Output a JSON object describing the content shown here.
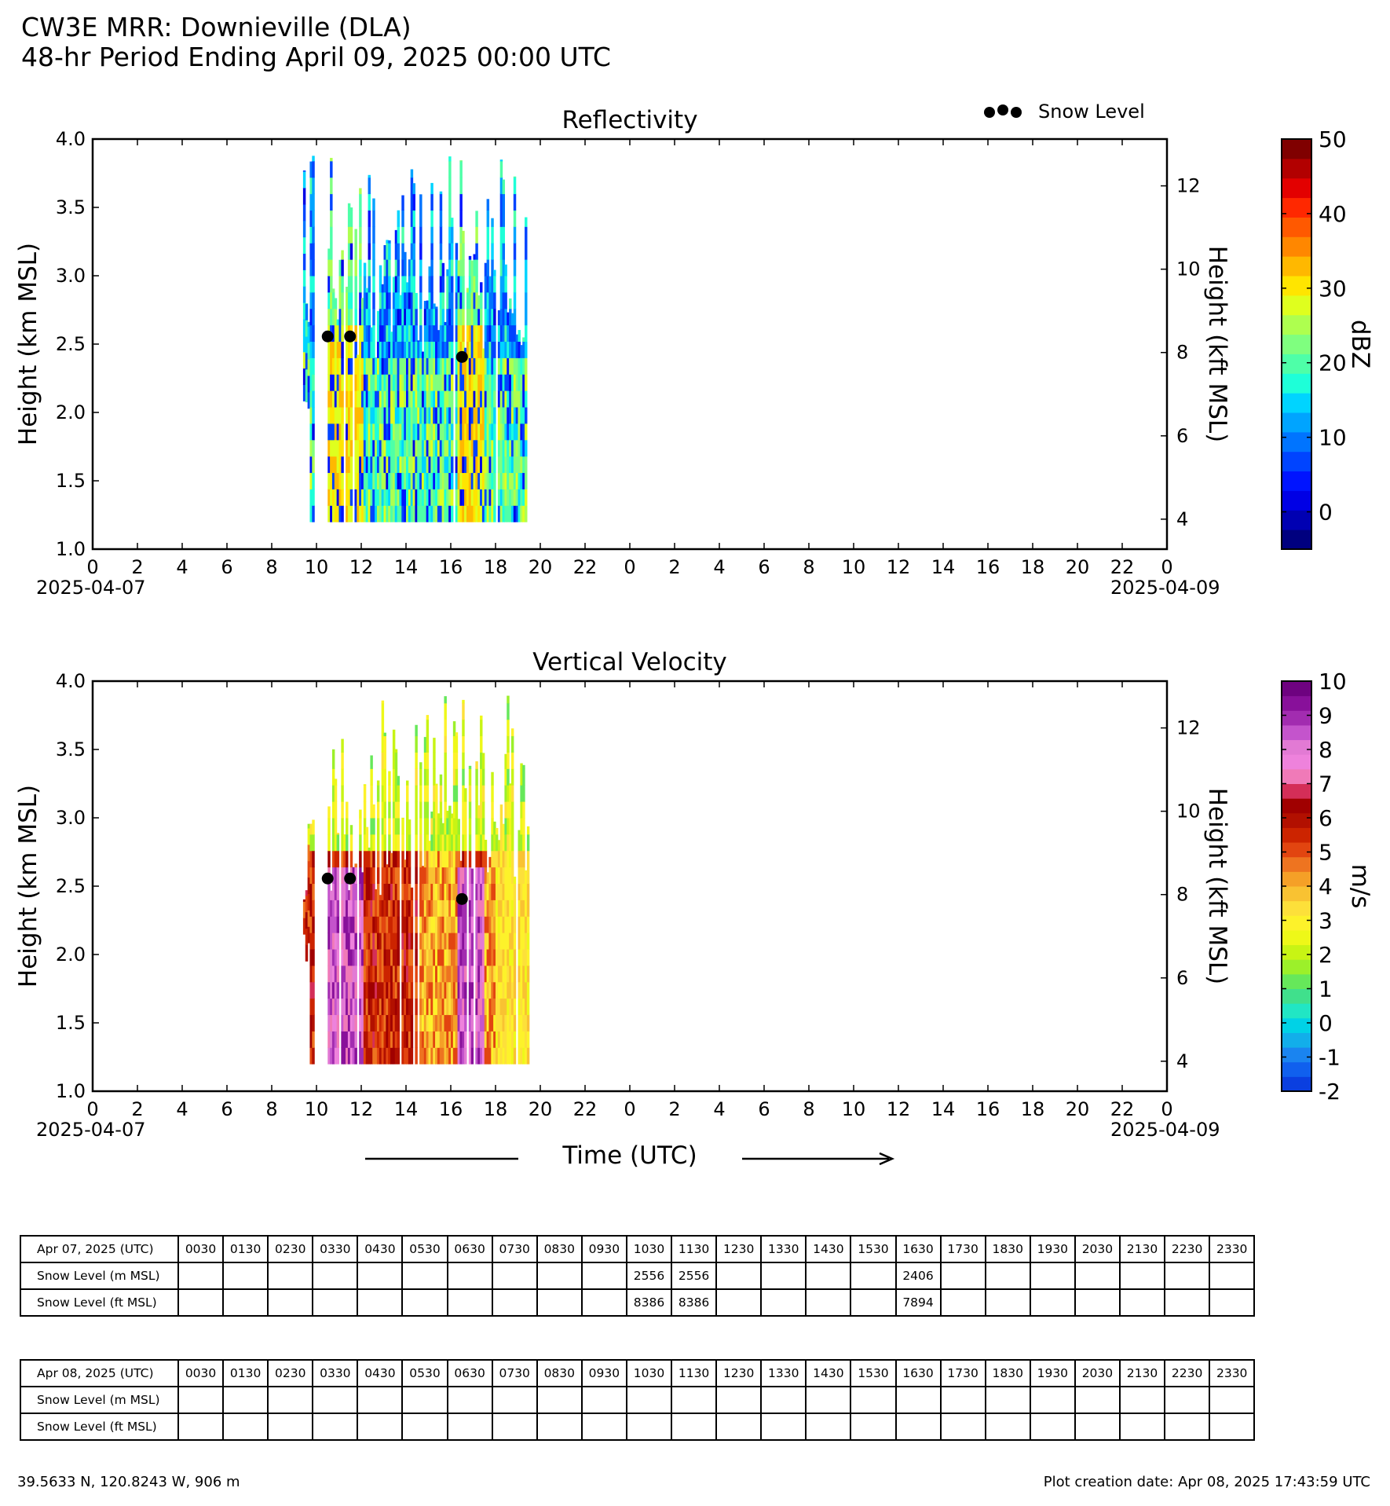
{
  "header": {
    "line1": "CW3E MRR: Downieville (DLA)",
    "line2": "48-hr Period Ending April 09, 2025 00:00 UTC"
  },
  "legend": {
    "snow_level_label": "Snow Level",
    "marker_color": "#000000"
  },
  "chart_data": [
    {
      "type": "heatmap",
      "title": "Reflectivity",
      "ylabel": "Height (km MSL)",
      "ylabel_right": "Height (kft MSL)",
      "colorbar_label": "dBZ",
      "ylim": [
        1.0,
        4.0
      ],
      "yticks": [
        "1.0",
        "1.5",
        "2.0",
        "2.5",
        "3.0",
        "3.5",
        "4.0"
      ],
      "yticks_right": [
        "4",
        "6",
        "8",
        "10",
        "12"
      ],
      "xlim_hours": [
        0,
        48
      ],
      "xticks": [
        "0",
        "2",
        "4",
        "6",
        "8",
        "10",
        "12",
        "14",
        "16",
        "18",
        "20",
        "22",
        "0",
        "2",
        "4",
        "6",
        "8",
        "10",
        "12",
        "14",
        "16",
        "18",
        "20",
        "22",
        "0"
      ],
      "date_left": "2025-04-07",
      "date_right": "2025-04-09",
      "colorbar": {
        "min": -5,
        "max": 50,
        "ticks": [
          "0",
          "10",
          "20",
          "30",
          "40",
          "50"
        ],
        "colors": [
          "#00007f",
          "#0000b2",
          "#0000e5",
          "#0014ff",
          "#0044ff",
          "#0074ff",
          "#00a4ff",
          "#00d4ff",
          "#1effd8",
          "#4effa8",
          "#7fff7f",
          "#aeff4f",
          "#dfff1e",
          "#ffe500",
          "#ffb800",
          "#ff8700",
          "#ff5900",
          "#ff2800",
          "#e30000",
          "#b20000",
          "#800000"
        ]
      },
      "data_extent": {
        "start_hour": 9.4,
        "end_hour": 19.5,
        "bottom_km": 1.2,
        "top_km": 3.9
      },
      "snow_level_points": [
        {
          "time": "10:30",
          "hour": 10.5,
          "height_km": 2.556
        },
        {
          "time": "11:30",
          "hour": 11.5,
          "height_km": 2.556
        },
        {
          "time": "16:30",
          "hour": 16.5,
          "height_km": 2.406
        }
      ]
    },
    {
      "type": "heatmap",
      "title": "Vertical Velocity",
      "ylabel": "Height (km MSL)",
      "ylabel_right": "Height (kft MSL)",
      "xlabel": "Time (UTC)",
      "colorbar_label": "m/s",
      "ylim": [
        1.0,
        4.0
      ],
      "yticks": [
        "1.0",
        "1.5",
        "2.0",
        "2.5",
        "3.0",
        "3.5",
        "4.0"
      ],
      "yticks_right": [
        "4",
        "6",
        "8",
        "10",
        "12"
      ],
      "xlim_hours": [
        0,
        48
      ],
      "xticks": [
        "0",
        "2",
        "4",
        "6",
        "8",
        "10",
        "12",
        "14",
        "16",
        "18",
        "20",
        "22",
        "0",
        "2",
        "4",
        "6",
        "8",
        "10",
        "12",
        "14",
        "16",
        "18",
        "20",
        "22",
        "0"
      ],
      "date_left": "2025-04-07",
      "date_right": "2025-04-09",
      "colorbar": {
        "min": -2,
        "max": 10,
        "ticks": [
          "-2",
          "-1",
          "0",
          "1",
          "2",
          "3",
          "4",
          "5",
          "6",
          "7",
          "8",
          "9",
          "10"
        ],
        "colors": [
          "#0a3fe0",
          "#1060ee",
          "#1a84f0",
          "#12aeea",
          "#00d2e6",
          "#21e6c4",
          "#40e08c",
          "#66e85a",
          "#9cf02a",
          "#c8f414",
          "#eef818",
          "#fdf22a",
          "#fde03a",
          "#f9c232",
          "#f5a027",
          "#ee7420",
          "#e24510",
          "#cc2400",
          "#b21000",
          "#a00000",
          "#d42e58",
          "#f07ab8",
          "#ee82dc",
          "#e27ad4",
          "#c454cc",
          "#a22cb0",
          "#88109a",
          "#6e0280"
        ]
      },
      "data_extent": {
        "start_hour": 9.4,
        "end_hour": 19.5,
        "bottom_km": 1.2,
        "top_km": 3.9
      },
      "snow_level_points": [
        {
          "time": "10:30",
          "hour": 10.5,
          "height_km": 2.556
        },
        {
          "time": "11:30",
          "hour": 11.5,
          "height_km": 2.556
        },
        {
          "time": "16:30",
          "hour": 16.5,
          "height_km": 2.406
        }
      ]
    }
  ],
  "tables": {
    "times": [
      "0030",
      "0130",
      "0230",
      "0330",
      "0430",
      "0530",
      "0630",
      "0730",
      "0830",
      "0930",
      "1030",
      "1130",
      "1230",
      "1330",
      "1430",
      "1530",
      "1630",
      "1730",
      "1830",
      "1930",
      "2030",
      "2130",
      "2230",
      "2330"
    ],
    "day1": {
      "date_label": "Apr 07, 2025 (UTC)",
      "rows": [
        {
          "label": "Snow Level (m MSL)",
          "values": [
            "",
            "",
            "",
            "",
            "",
            "",
            "",
            "",
            "",
            "",
            "2556",
            "2556",
            "",
            "",
            "",
            "",
            "2406",
            "",
            "",
            "",
            "",
            "",
            "",
            ""
          ]
        },
        {
          "label": "Snow Level (ft MSL)",
          "values": [
            "",
            "",
            "",
            "",
            "",
            "",
            "",
            "",
            "",
            "",
            "8386",
            "8386",
            "",
            "",
            "",
            "",
            "7894",
            "",
            "",
            "",
            "",
            "",
            "",
            ""
          ]
        }
      ]
    },
    "day2": {
      "date_label": "Apr 08, 2025 (UTC)",
      "rows": [
        {
          "label": "Snow Level (m MSL)",
          "values": [
            "",
            "",
            "",
            "",
            "",
            "",
            "",
            "",
            "",
            "",
            "",
            "",
            "",
            "",
            "",
            "",
            "",
            "",
            "",
            "",
            "",
            "",
            "",
            ""
          ]
        },
        {
          "label": "Snow Level (ft MSL)",
          "values": [
            "",
            "",
            "",
            "",
            "",
            "",
            "",
            "",
            "",
            "",
            "",
            "",
            "",
            "",
            "",
            "",
            "",
            "",
            "",
            "",
            "",
            "",
            "",
            ""
          ]
        }
      ]
    }
  },
  "footer": {
    "location": "39.5633 N, 120.8243 W, 906 m",
    "creation": "Plot creation date: Apr 08, 2025 17:43:59 UTC"
  }
}
